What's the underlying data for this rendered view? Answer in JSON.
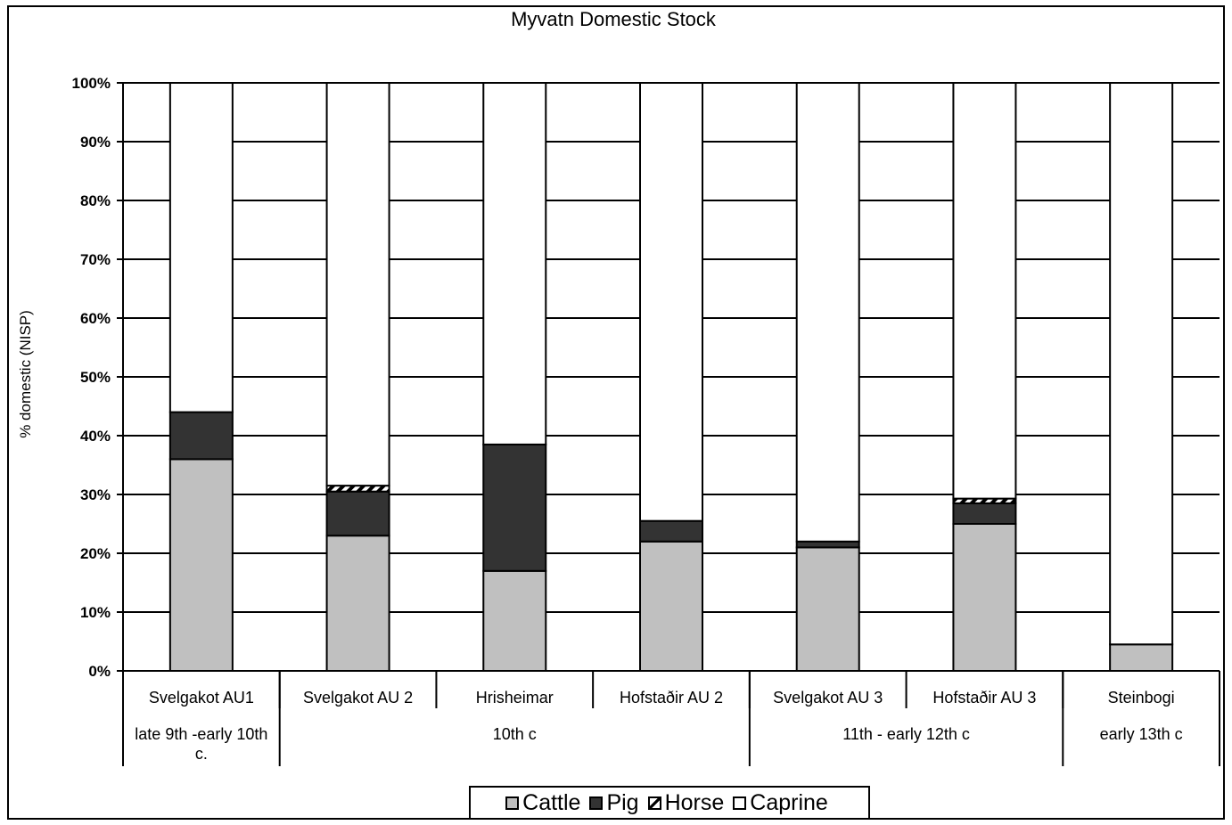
{
  "chart_data": {
    "type": "bar",
    "stacked": true,
    "title": "Myvatn Domestic Stock",
    "ylabel": "% domestic (NISP)",
    "xlabel": "",
    "ylim": [
      0,
      100
    ],
    "yticks": [
      "0%",
      "10%",
      "20%",
      "30%",
      "40%",
      "50%",
      "60%",
      "70%",
      "80%",
      "90%",
      "100%"
    ],
    "grid": true,
    "legend_position": "bottom",
    "categories": [
      "Svelgakot AU1",
      "Svelgakot AU 2",
      "Hrisheimar",
      "Hofstaðir AU 2",
      "Svelgakot AU 3",
      "Hofstaðir AU 3",
      "Steinbogi"
    ],
    "period_groups": [
      {
        "label": "late 9th -early 10th c.",
        "categories": [
          0
        ]
      },
      {
        "label": "10th c",
        "categories": [
          1,
          2,
          3
        ]
      },
      {
        "label": "11th - early 12th c",
        "categories": [
          4,
          5
        ]
      },
      {
        "label": "early 13th c",
        "categories": [
          6
        ]
      }
    ],
    "series": [
      {
        "name": "Cattle",
        "color": "#c0c0c0",
        "pattern": "solid",
        "values": [
          36,
          23,
          17,
          22,
          21,
          25,
          4.5
        ]
      },
      {
        "name": "Pig",
        "color": "#333333",
        "pattern": "solid",
        "values": [
          8,
          7.5,
          21.5,
          3.5,
          1,
          3.5,
          0
        ]
      },
      {
        "name": "Horse",
        "color": "#ffffff",
        "pattern": "hatched",
        "values": [
          0,
          1,
          0,
          0,
          0,
          0.8,
          0
        ]
      },
      {
        "name": "Caprine",
        "color": "#ffffff",
        "pattern": "solid",
        "values": [
          56,
          68.5,
          61.5,
          74.5,
          78,
          70.7,
          95.5
        ]
      }
    ]
  }
}
